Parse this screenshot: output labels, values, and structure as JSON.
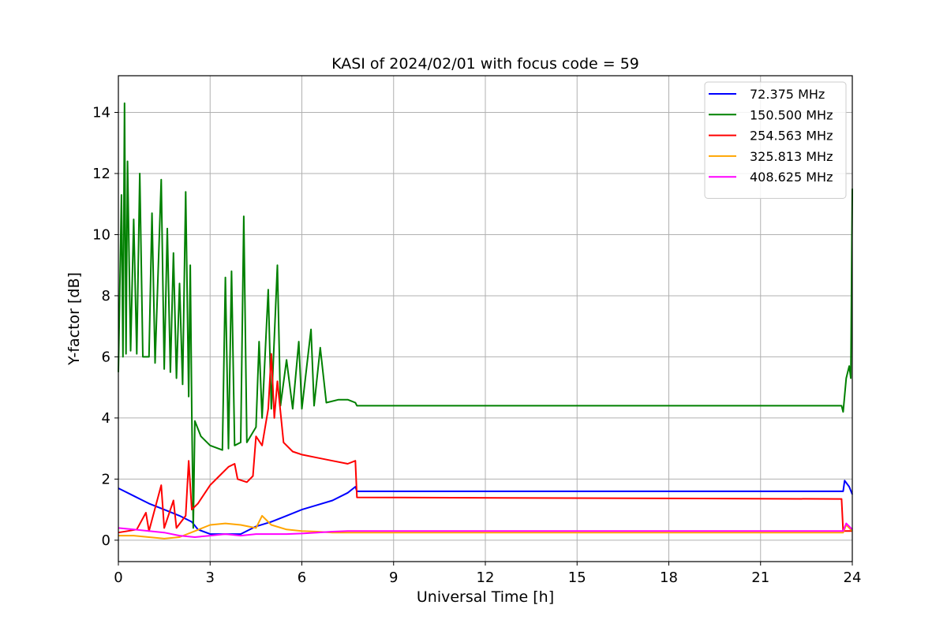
{
  "chart_data": {
    "type": "line",
    "title": "KASI of 2024/02/01 with focus code = 59",
    "xlabel": "Universal Time [h]",
    "ylabel": "Y-factor [dB]",
    "xlim": [
      0,
      24
    ],
    "ylim": [
      -0.7,
      15.2
    ],
    "xticks": [
      0,
      3,
      6,
      9,
      12,
      15,
      18,
      21,
      24
    ],
    "yticks": [
      0,
      2,
      4,
      6,
      8,
      10,
      12,
      14
    ],
    "grid": true,
    "legend_position": "top-right",
    "series": [
      {
        "name": " 72.375 MHz",
        "color": "#0000ff",
        "points": [
          [
            0,
            1.7
          ],
          [
            0.2,
            1.6
          ],
          [
            0.5,
            1.45
          ],
          [
            0.8,
            1.3
          ],
          [
            1.0,
            1.2
          ],
          [
            1.5,
            1.0
          ],
          [
            2.0,
            0.8
          ],
          [
            2.4,
            0.6
          ],
          [
            2.6,
            0.35
          ],
          [
            3.0,
            0.2
          ],
          [
            3.5,
            0.2
          ],
          [
            4.0,
            0.2
          ],
          [
            4.5,
            0.45
          ],
          [
            5.0,
            0.6
          ],
          [
            5.5,
            0.8
          ],
          [
            6.0,
            1.0
          ],
          [
            6.5,
            1.15
          ],
          [
            7.0,
            1.3
          ],
          [
            7.5,
            1.55
          ],
          [
            7.75,
            1.75
          ],
          [
            7.8,
            1.6
          ],
          [
            23.7,
            1.6
          ],
          [
            23.75,
            1.95
          ],
          [
            23.9,
            1.75
          ],
          [
            24.0,
            1.5
          ]
        ]
      },
      {
        "name": "150.500 MHz",
        "color": "#008000",
        "points": [
          [
            0,
            5.5
          ],
          [
            0.1,
            11.3
          ],
          [
            0.15,
            6.0
          ],
          [
            0.2,
            14.3
          ],
          [
            0.25,
            6.1
          ],
          [
            0.3,
            12.4
          ],
          [
            0.4,
            6.2
          ],
          [
            0.5,
            10.5
          ],
          [
            0.6,
            6.1
          ],
          [
            0.7,
            12.0
          ],
          [
            0.8,
            6.0
          ],
          [
            1.0,
            6.0
          ],
          [
            1.1,
            10.7
          ],
          [
            1.2,
            5.8
          ],
          [
            1.4,
            11.8
          ],
          [
            1.5,
            5.6
          ],
          [
            1.6,
            10.2
          ],
          [
            1.7,
            5.5
          ],
          [
            1.8,
            9.4
          ],
          [
            1.9,
            5.3
          ],
          [
            2.0,
            8.4
          ],
          [
            2.1,
            5.1
          ],
          [
            2.2,
            11.4
          ],
          [
            2.3,
            4.7
          ],
          [
            2.35,
            9.0
          ],
          [
            2.4,
            4.2
          ],
          [
            2.45,
            0.4
          ],
          [
            2.5,
            3.9
          ],
          [
            2.7,
            3.4
          ],
          [
            3.0,
            3.1
          ],
          [
            3.4,
            2.95
          ],
          [
            3.5,
            8.6
          ],
          [
            3.6,
            3.0
          ],
          [
            3.7,
            8.8
          ],
          [
            3.8,
            3.1
          ],
          [
            4.0,
            3.2
          ],
          [
            4.1,
            10.6
          ],
          [
            4.2,
            3.2
          ],
          [
            4.5,
            3.7
          ],
          [
            4.6,
            6.5
          ],
          [
            4.7,
            4.0
          ],
          [
            4.9,
            8.2
          ],
          [
            5.0,
            4.3
          ],
          [
            5.2,
            9.0
          ],
          [
            5.3,
            4.4
          ],
          [
            5.5,
            5.9
          ],
          [
            5.7,
            4.3
          ],
          [
            5.9,
            6.5
          ],
          [
            6.0,
            4.3
          ],
          [
            6.3,
            6.9
          ],
          [
            6.4,
            4.4
          ],
          [
            6.6,
            6.3
          ],
          [
            6.8,
            4.5
          ],
          [
            7.2,
            4.6
          ],
          [
            7.5,
            4.6
          ],
          [
            7.75,
            4.5
          ],
          [
            7.8,
            4.4
          ],
          [
            23.65,
            4.4
          ],
          [
            23.7,
            4.2
          ],
          [
            23.8,
            5.3
          ],
          [
            23.9,
            5.7
          ],
          [
            23.95,
            5.3
          ],
          [
            24.0,
            11.5
          ]
        ]
      },
      {
        "name": "254.563 MHz",
        "color": "#ff0000",
        "points": [
          [
            0,
            0.25
          ],
          [
            0.3,
            0.3
          ],
          [
            0.6,
            0.35
          ],
          [
            0.9,
            0.9
          ],
          [
            1.0,
            0.3
          ],
          [
            1.4,
            1.8
          ],
          [
            1.5,
            0.4
          ],
          [
            1.8,
            1.3
          ],
          [
            1.9,
            0.4
          ],
          [
            2.2,
            0.8
          ],
          [
            2.3,
            2.6
          ],
          [
            2.4,
            1.0
          ],
          [
            2.6,
            1.2
          ],
          [
            2.8,
            1.5
          ],
          [
            3.0,
            1.8
          ],
          [
            3.3,
            2.1
          ],
          [
            3.6,
            2.4
          ],
          [
            3.8,
            2.5
          ],
          [
            3.9,
            2.0
          ],
          [
            4.2,
            1.9
          ],
          [
            4.4,
            2.1
          ],
          [
            4.5,
            3.4
          ],
          [
            4.7,
            3.1
          ],
          [
            4.9,
            4.3
          ],
          [
            5.0,
            6.1
          ],
          [
            5.1,
            4.0
          ],
          [
            5.2,
            5.2
          ],
          [
            5.4,
            3.2
          ],
          [
            5.7,
            2.9
          ],
          [
            6.0,
            2.8
          ],
          [
            6.5,
            2.7
          ],
          [
            7.0,
            2.6
          ],
          [
            7.5,
            2.5
          ],
          [
            7.75,
            2.6
          ],
          [
            7.8,
            1.4
          ],
          [
            23.65,
            1.35
          ],
          [
            23.7,
            0.3
          ],
          [
            24.0,
            0.3
          ]
        ]
      },
      {
        "name": "325.813 MHz",
        "color": "#ffa500",
        "points": [
          [
            0,
            0.15
          ],
          [
            0.5,
            0.15
          ],
          [
            1.0,
            0.1
          ],
          [
            1.5,
            0.05
          ],
          [
            2.0,
            0.1
          ],
          [
            2.5,
            0.3
          ],
          [
            3.0,
            0.5
          ],
          [
            3.5,
            0.55
          ],
          [
            4.0,
            0.5
          ],
          [
            4.5,
            0.4
          ],
          [
            4.7,
            0.8
          ],
          [
            5.0,
            0.5
          ],
          [
            5.5,
            0.35
          ],
          [
            6.0,
            0.3
          ],
          [
            6.5,
            0.28
          ],
          [
            7.0,
            0.25
          ],
          [
            7.75,
            0.25
          ],
          [
            7.8,
            0.25
          ],
          [
            23.7,
            0.25
          ],
          [
            23.8,
            0.5
          ],
          [
            24.0,
            0.3
          ]
        ]
      },
      {
        "name": "408.625 MHz",
        "color": "#ff00ff",
        "points": [
          [
            0,
            0.4
          ],
          [
            0.5,
            0.35
          ],
          [
            1.0,
            0.3
          ],
          [
            1.5,
            0.25
          ],
          [
            2.0,
            0.15
          ],
          [
            2.5,
            0.1
          ],
          [
            3.0,
            0.15
          ],
          [
            3.5,
            0.2
          ],
          [
            4.0,
            0.15
          ],
          [
            4.5,
            0.2
          ],
          [
            5.0,
            0.2
          ],
          [
            5.5,
            0.2
          ],
          [
            6.0,
            0.22
          ],
          [
            6.5,
            0.25
          ],
          [
            7.0,
            0.28
          ],
          [
            7.5,
            0.3
          ],
          [
            7.75,
            0.3
          ],
          [
            7.8,
            0.3
          ],
          [
            23.7,
            0.3
          ],
          [
            23.8,
            0.55
          ],
          [
            24.0,
            0.35
          ]
        ]
      }
    ]
  }
}
